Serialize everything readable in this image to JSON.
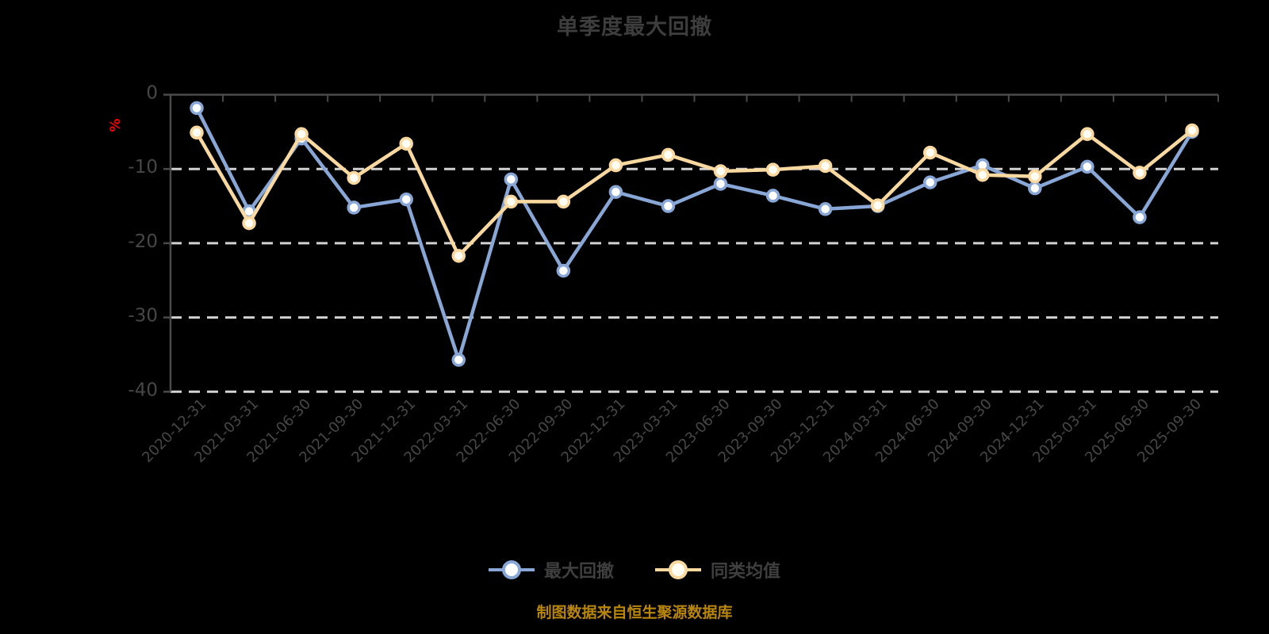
{
  "title": {
    "text": "单季度最大回撤"
  },
  "y_axis_unit": {
    "text": "%",
    "color": "#ff0000"
  },
  "legend": {
    "items": [
      {
        "label": "最大回撤",
        "color": "#88a7d6",
        "marker_fill": "#ffffff"
      },
      {
        "label": "同类均值",
        "color": "#f9d9a0",
        "marker_fill": "#fffdf4"
      }
    ]
  },
  "source_note": {
    "text": "制图数据来自恒生聚源数据库",
    "color": "#b8860b"
  },
  "chart_data": {
    "type": "line",
    "title": "单季度最大回撤",
    "ylabel": "%",
    "ylim": [
      -40,
      0
    ],
    "yticks": [
      0,
      -10,
      -20,
      -30,
      -40
    ],
    "grid": "horizontal-dashed",
    "legend_position": "bottom",
    "categories": [
      "2020-12-31",
      "2021-03-31",
      "2021-06-30",
      "2021-09-30",
      "2021-12-31",
      "2022-03-31",
      "2022-06-30",
      "2022-09-30",
      "2022-12-31",
      "2023-03-31",
      "2023-06-30",
      "2023-09-30",
      "2023-12-31",
      "2024-03-31",
      "2024-06-30",
      "2024-09-30",
      "2024-12-31",
      "2025-03-31",
      "2025-06-30",
      "2025-09-30"
    ],
    "series": [
      {
        "name": "最大回撤",
        "color": "#88a7d6",
        "marker_fill": "#ffffff",
        "values": [
          -1.8,
          -15.7,
          -5.9,
          -15.2,
          -14.1,
          -35.7,
          -11.4,
          -23.7,
          -13.1,
          -15.0,
          -12.0,
          -13.6,
          -15.4,
          -15.0,
          -11.8,
          -9.5,
          -12.6,
          -9.7,
          -16.5,
          -5.0
        ]
      },
      {
        "name": "同类均值",
        "color": "#f9d9a0",
        "marker_fill": "#fffdf4",
        "values": [
          -5.1,
          -17.3,
          -5.3,
          -11.2,
          -6.6,
          -21.7,
          -14.4,
          -14.4,
          -9.5,
          -8.1,
          -10.3,
          -10.1,
          -9.6,
          -14.9,
          -7.8,
          -10.8,
          -11.0,
          -5.3,
          -10.5,
          -4.8
        ]
      }
    ]
  }
}
